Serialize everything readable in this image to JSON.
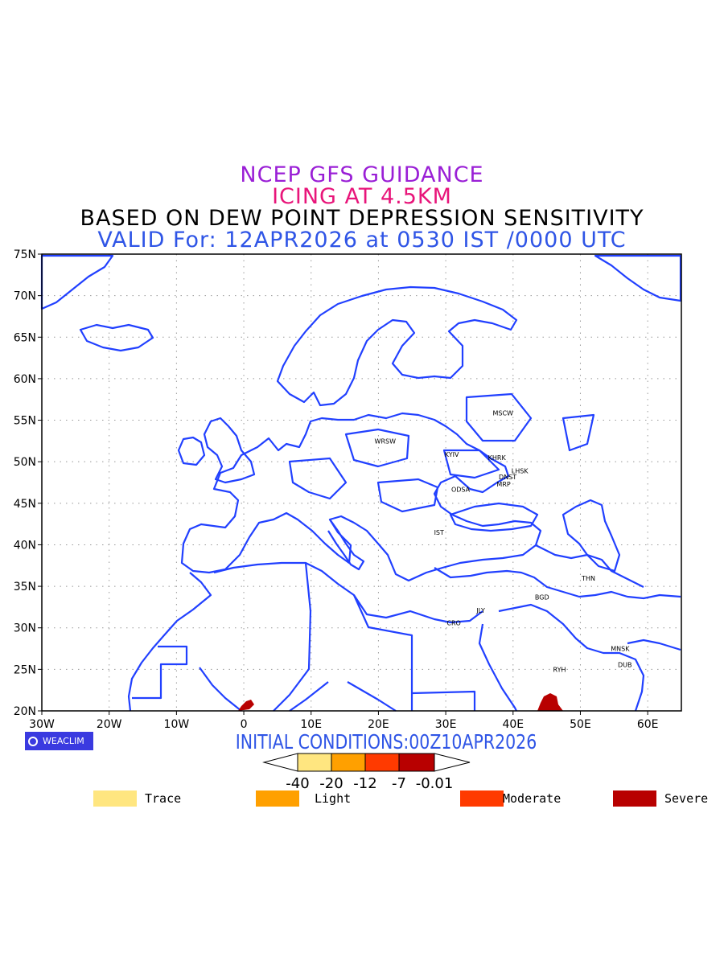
{
  "title": {
    "line1": "NCEP GFS GUIDANCE",
    "line2": "ICING AT 4.5KM",
    "line3": "BASED ON DEW POINT DEPRESSION SENSITIVITY",
    "line4": "VALID For: 12APR2026 at 0530 IST /0000 UTC"
  },
  "colors": {
    "line1": "#9a1fd6",
    "line2": "#e8157a",
    "line3": "#000000",
    "line4": "#2f55e6",
    "coast": "#2140ff",
    "trace": "#ffe680",
    "light": "#ffa000",
    "moderate": "#ff3a00",
    "severe": "#b80000"
  },
  "map": {
    "lat_ticks": [
      "75N",
      "70N",
      "65N",
      "60N",
      "55N",
      "50N",
      "45N",
      "40N",
      "35N",
      "30N",
      "25N",
      "20N"
    ],
    "lon_ticks": [
      "30W",
      "20W",
      "10W",
      "0",
      "10E",
      "20E",
      "30E",
      "40E",
      "50E",
      "60E"
    ],
    "extent": {
      "lon": [
        -30,
        65
      ],
      "lat": [
        20,
        75
      ]
    },
    "grid": "dotted",
    "cities": [
      {
        "name": "MSCW",
        "lon": 38.5,
        "lat": 55.6
      },
      {
        "name": "WRSW",
        "lon": 21.0,
        "lat": 52.2
      },
      {
        "name": "KYIV",
        "lon": 30.9,
        "lat": 50.6
      },
      {
        "name": "KHRK",
        "lon": 37.6,
        "lat": 50.2
      },
      {
        "name": "LHSK",
        "lon": 41.0,
        "lat": 48.6
      },
      {
        "name": "DNST",
        "lon": 39.2,
        "lat": 47.9
      },
      {
        "name": "MRP",
        "lon": 38.6,
        "lat": 47.0
      },
      {
        "name": "ODSA",
        "lon": 32.2,
        "lat": 46.4
      },
      {
        "name": "IST",
        "lon": 29.0,
        "lat": 41.2
      },
      {
        "name": "THN",
        "lon": 51.2,
        "lat": 35.7
      },
      {
        "name": "BGD",
        "lon": 44.3,
        "lat": 33.4
      },
      {
        "name": "JLY",
        "lon": 35.2,
        "lat": 31.8
      },
      {
        "name": "CRO",
        "lon": 31.2,
        "lat": 30.3
      },
      {
        "name": "MNSK",
        "lon": 55.9,
        "lat": 27.2
      },
      {
        "name": "DUB",
        "lon": 56.6,
        "lat": 25.3
      },
      {
        "name": "RYH",
        "lon": 46.9,
        "lat": 24.7
      }
    ]
  },
  "logo": "WEACLIM",
  "initial_conditions": "INITIAL CONDITIONS:00Z10APR2026",
  "colorbar": {
    "ticks": [
      "-40",
      "-20",
      "-12",
      "-7",
      "-0.01"
    ]
  },
  "legend": [
    {
      "label": "Trace",
      "color": "#ffe680"
    },
    {
      "label": "Light",
      "color": "#ffa000"
    },
    {
      "label": "Moderate",
      "color": "#ff3a00"
    },
    {
      "label": "Severe",
      "color": "#b80000"
    }
  ]
}
